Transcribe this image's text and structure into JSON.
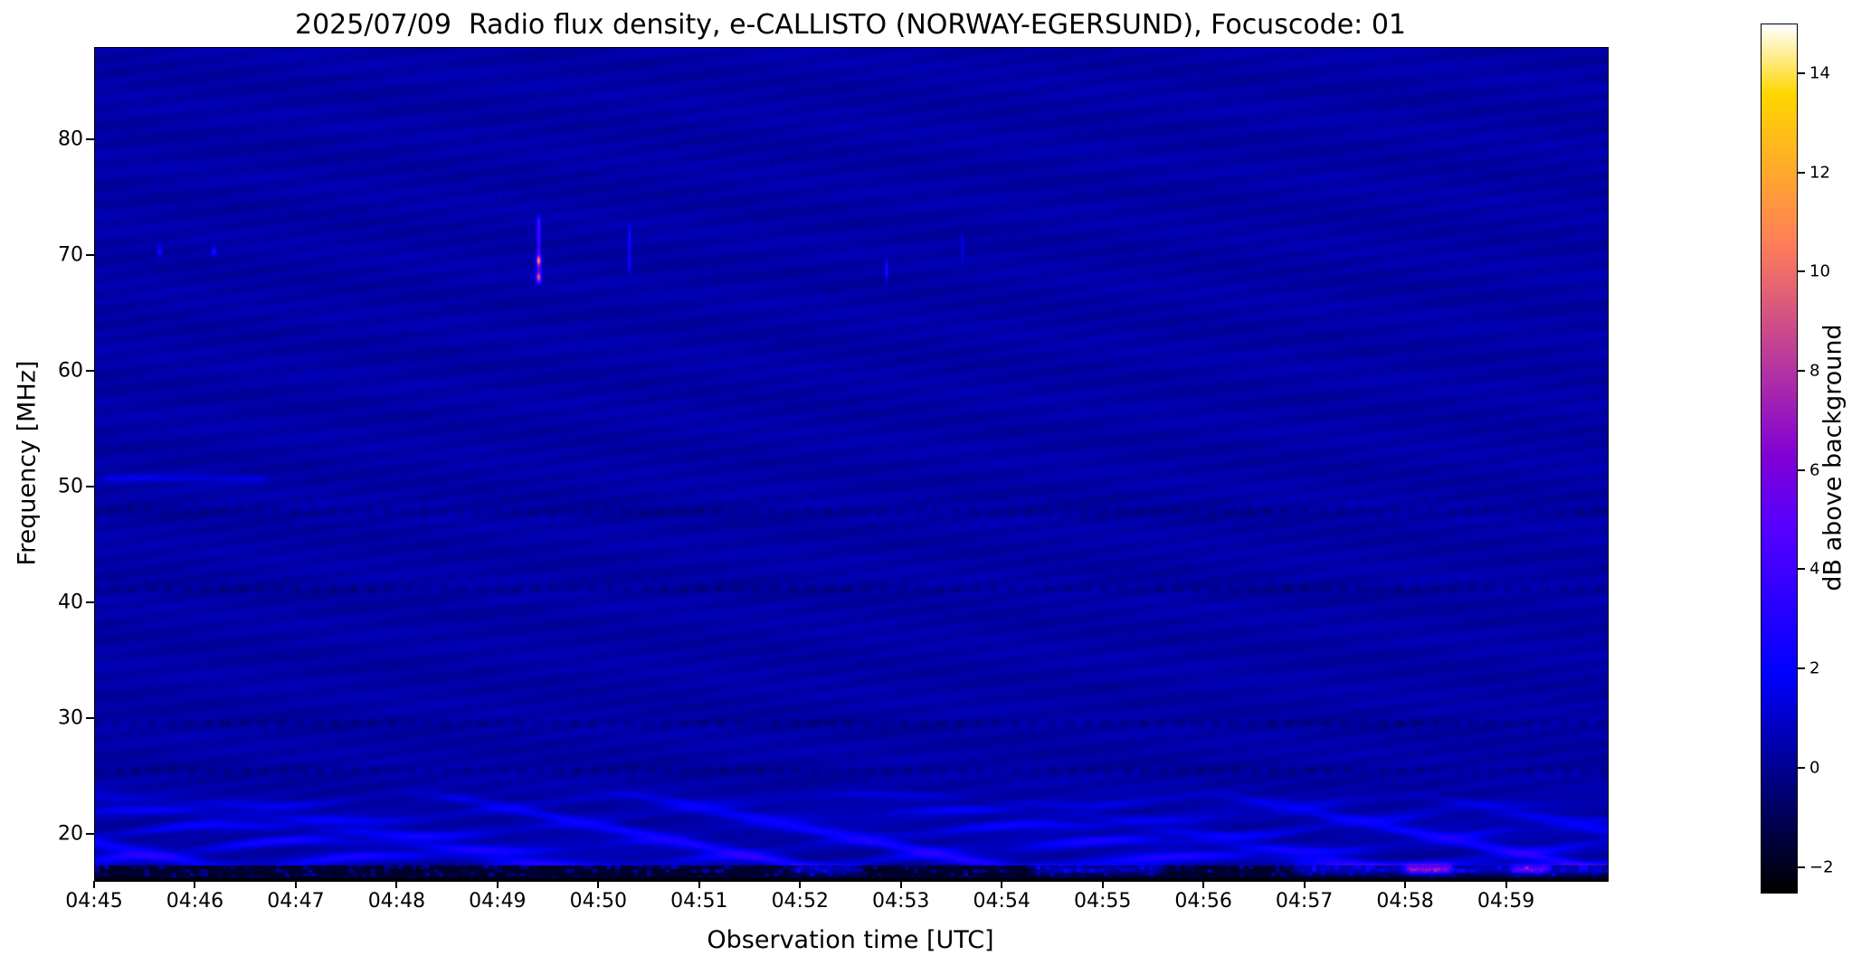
{
  "chart_data": {
    "type": "heatmap",
    "title": "2025/07/09  Radio flux density, e-CALLISTO (NORWAY-EGERSUND), Focuscode: 01",
    "xlabel": "Observation time [UTC]",
    "ylabel": "Frequency [MHz]",
    "x_ticks": [
      "04:45",
      "04:46",
      "04:47",
      "04:48",
      "04:49",
      "04:50",
      "04:51",
      "04:52",
      "04:53",
      "04:54",
      "04:55",
      "04:56",
      "04:57",
      "04:58",
      "04:59"
    ],
    "x_range_min": [
      0,
      15
    ],
    "y_ticks": [
      "20",
      "30",
      "40",
      "50",
      "60",
      "70",
      "80"
    ],
    "y_tick_values": [
      20,
      30,
      40,
      50,
      60,
      70,
      80
    ],
    "y_range_mhz": [
      16,
      88
    ],
    "colorbar": {
      "label": "dB above background",
      "ticks": [
        "−2",
        "0",
        "2",
        "4",
        "6",
        "8",
        "10",
        "12",
        "14"
      ],
      "tick_values": [
        -2,
        0,
        2,
        4,
        6,
        8,
        10,
        12,
        14
      ],
      "range_db": [
        -2.5,
        15
      ],
      "colormap": "gnuplot2"
    },
    "background_db": 0.35,
    "dark_interference_rows_mhz": [
      25.6,
      29.6,
      41.2,
      47.9
    ],
    "low_band": {
      "top_mhz": 24.5,
      "cutoff_mhz": 17.35,
      "base_mhz": 17.7,
      "spacing_mhz": 1.32,
      "amp_db": 2.7
    },
    "features": [
      {
        "kind": "vline",
        "name": "rfi-burst-0449",
        "t": 4.4,
        "f_lo": 67.8,
        "f_hi": 73.4,
        "t_sigma": 0.013,
        "amp_db": 5.5
      },
      {
        "kind": "point",
        "name": "rfi-dot-0449-a",
        "t": 4.4,
        "f": 69.6,
        "t_sigma": 0.02,
        "f_sigma": 0.28,
        "amp_db": 7.0
      },
      {
        "kind": "point",
        "name": "rfi-dot-0449-b",
        "t": 4.4,
        "f": 68.1,
        "t_sigma": 0.02,
        "f_sigma": 0.28,
        "amp_db": 6.0
      },
      {
        "kind": "vline",
        "name": "rfi-burst-0450",
        "t": 5.3,
        "f_lo": 68.6,
        "f_hi": 72.6,
        "t_sigma": 0.01,
        "amp_db": 3.2
      },
      {
        "kind": "vline",
        "name": "rfi-burst-0452",
        "t": 7.85,
        "f_lo": 67.9,
        "f_hi": 69.6,
        "t_sigma": 0.009,
        "amp_db": 3.6
      },
      {
        "kind": "vline",
        "name": "rfi-burst-0453",
        "t": 8.6,
        "f_lo": 69.8,
        "f_hi": 71.8,
        "t_sigma": 0.008,
        "amp_db": 2.0
      },
      {
        "kind": "point",
        "name": "rfi-dot-0445",
        "t": 0.64,
        "f": 70.4,
        "t_sigma": 0.016,
        "f_sigma": 0.3,
        "amp_db": 2.6
      },
      {
        "kind": "point",
        "name": "rfi-dot-0446",
        "t": 1.18,
        "f": 70.4,
        "t_sigma": 0.016,
        "f_sigma": 0.3,
        "amp_db": 2.6
      },
      {
        "kind": "blob",
        "name": "bottom-band-enhanced",
        "t_lo": 11.9,
        "t_hi": 15.0,
        "f": 17.0,
        "f_sigma": 0.33,
        "amp_db": 3.0
      },
      {
        "kind": "blob",
        "name": "bottom-hotspot-pink-0458",
        "t_lo": 13.0,
        "t_hi": 13.45,
        "f": 17.0,
        "f_sigma": 0.3,
        "amp_db": 6.5
      },
      {
        "kind": "blob",
        "name": "bottom-hotspot-pink-0459",
        "t_lo": 14.05,
        "t_hi": 14.4,
        "f": 17.0,
        "f_sigma": 0.28,
        "amp_db": 5.0
      },
      {
        "kind": "blob",
        "name": "bottom-rfi-blue-0452",
        "t_lo": 6.9,
        "t_hi": 7.6,
        "f": 17.0,
        "f_sigma": 0.3,
        "amp_db": 2.8
      },
      {
        "kind": "blob",
        "name": "bottom-rfi-blue-0454",
        "t_lo": 9.3,
        "t_hi": 10.6,
        "f": 17.0,
        "f_sigma": 0.3,
        "amp_db": 2.6
      },
      {
        "kind": "blob",
        "name": "faint-dashes-51mhz",
        "t_lo": 0.1,
        "t_hi": 1.7,
        "f": 50.8,
        "f_sigma": 0.22,
        "amp_db": 1.1
      }
    ]
  }
}
